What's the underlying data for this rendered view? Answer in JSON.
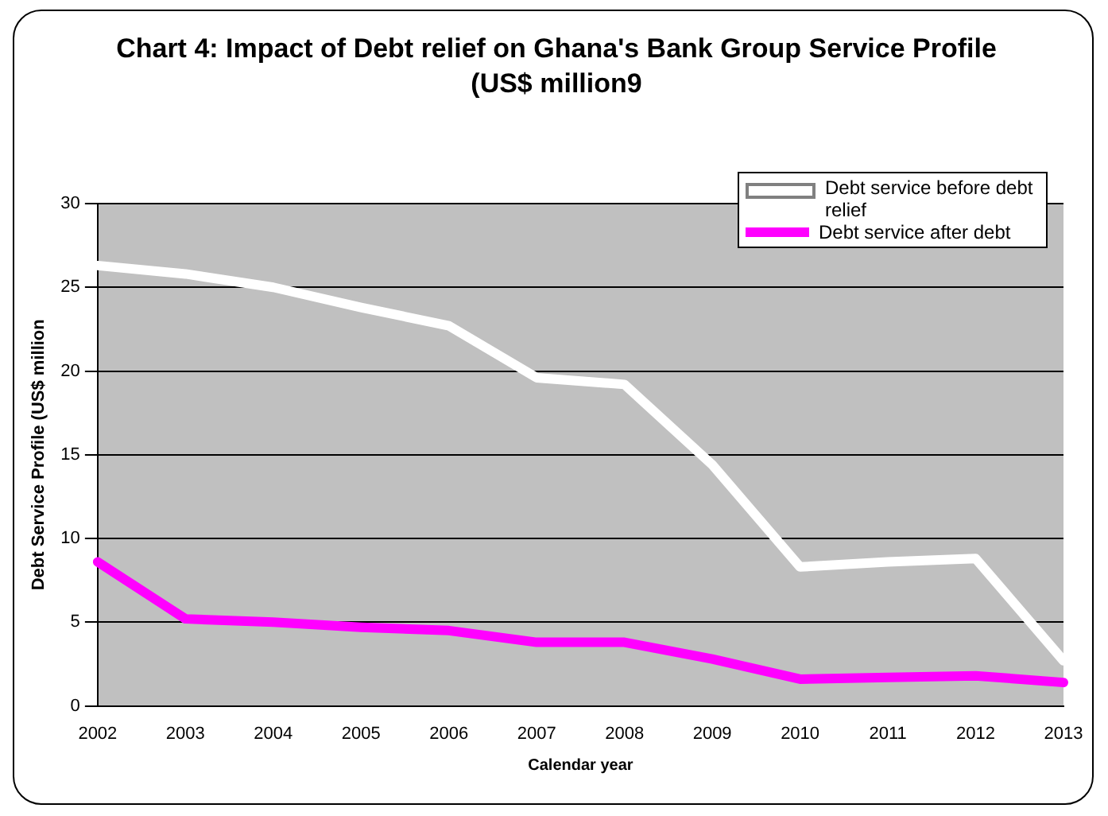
{
  "chart_data": {
    "type": "line",
    "title": "Chart 4: Impact of Debt relief on Ghana's Bank Group Service Profile (US$ million9",
    "xlabel": "Calendar year",
    "ylabel": "Debt Service Profile (US$ million",
    "categories": [
      "2002",
      "2003",
      "2004",
      "2005",
      "2006",
      "2007",
      "2008",
      "2009",
      "2010",
      "2011",
      "2012",
      "2013"
    ],
    "series": [
      {
        "name": "Debt service before debt relief",
        "color": "#ffffff",
        "values": [
          26.3,
          25.8,
          25.0,
          23.8,
          22.7,
          19.6,
          19.2,
          14.4,
          8.3,
          8.6,
          8.8,
          2.7
        ]
      },
      {
        "name": "Debt service after debt",
        "color": "#ff00ff",
        "values": [
          8.6,
          5.2,
          5.0,
          4.7,
          4.5,
          3.8,
          3.8,
          2.8,
          1.6,
          1.7,
          1.8,
          1.4
        ]
      }
    ],
    "ylim": [
      0,
      30
    ],
    "yticks": [
      0,
      5,
      10,
      15,
      20,
      25,
      30
    ],
    "grid": "y",
    "legend": "top right",
    "marker": "none",
    "line_style": "solid"
  }
}
